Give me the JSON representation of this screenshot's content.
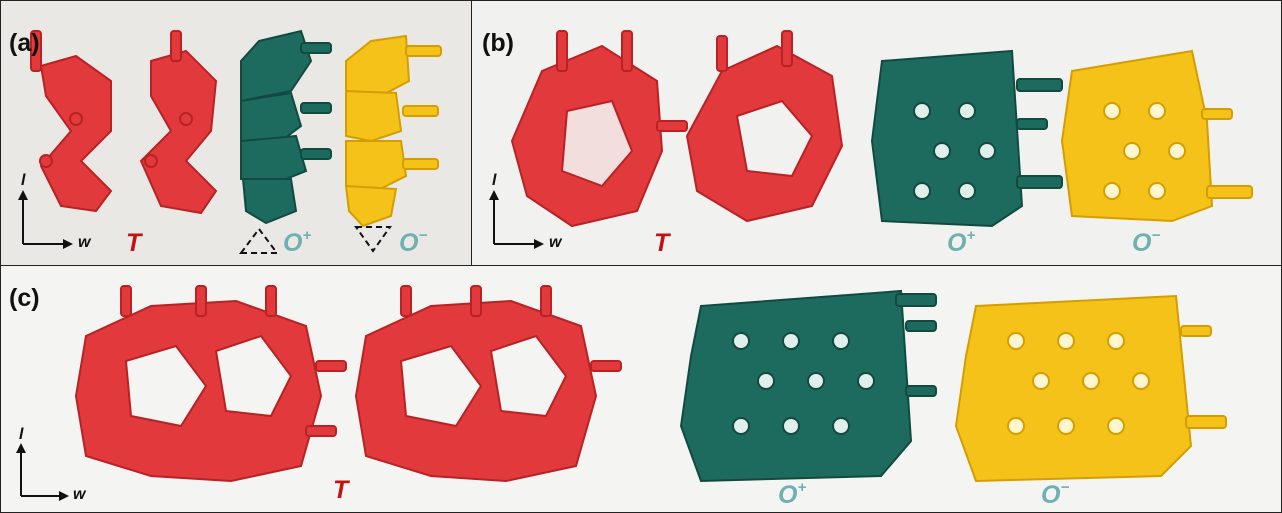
{
  "panels": {
    "a": {
      "label": "(a)",
      "sample_labels": {
        "t": "T",
        "o_plus": "O",
        "o_plus_sup": "+",
        "o_minus": "O",
        "o_minus_sup": "−"
      },
      "axis": {
        "vertical": "l",
        "horizontal": "w"
      }
    },
    "b": {
      "label": "(b)",
      "sample_labels": {
        "t": "T",
        "o_plus": "O",
        "o_plus_sup": "+",
        "o_minus": "O",
        "o_minus_sup": "−"
      },
      "axis": {
        "vertical": "l",
        "horizontal": "w"
      }
    },
    "c": {
      "label": "(c)",
      "sample_labels": {
        "t": "T",
        "o_plus": "O",
        "o_plus_sup": "+",
        "o_minus": "O",
        "o_minus_sup": "−"
      },
      "axis": {
        "vertical": "l",
        "horizontal": "w"
      }
    }
  },
  "colors": {
    "red_material": "#e23a3c",
    "teal_material": "#1d6a5e",
    "yellow_material": "#f5c21a",
    "label_red": "#c01414",
    "label_teal": "#6fb0b0"
  }
}
